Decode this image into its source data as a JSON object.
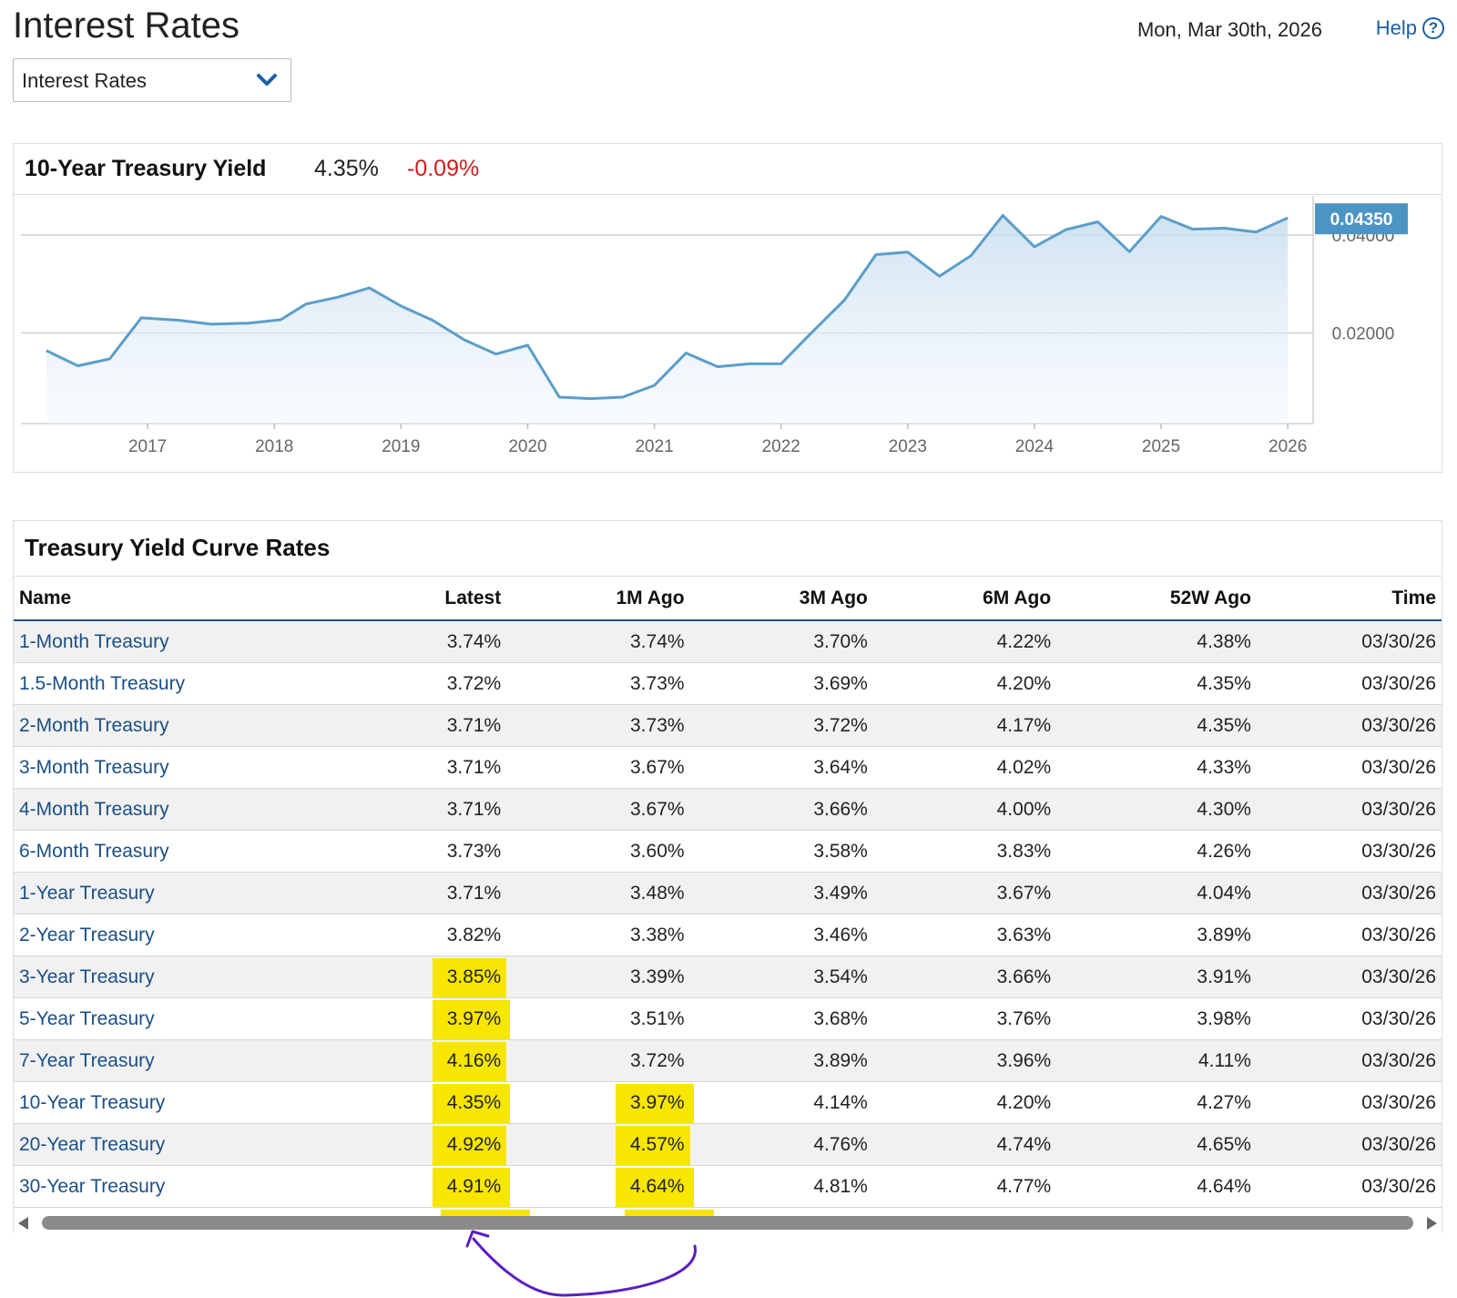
{
  "header": {
    "title": "Interest Rates",
    "date": "Mon, Mar 30th, 2026",
    "help_label": "Help"
  },
  "selector": {
    "value": "Interest Rates"
  },
  "chart_panel": {
    "title": "10-Year Treasury Yield",
    "value": "4.35%",
    "change": "-0.09%",
    "current_label": "0.04350"
  },
  "chart_data": {
    "type": "area",
    "x_tick_labels": [
      "2017",
      "2018",
      "2019",
      "2020",
      "2021",
      "2022",
      "2023",
      "2024",
      "2025",
      "2026"
    ],
    "y_tick_labels": [
      "0.02000",
      "0.04000"
    ],
    "y_ticks": [
      0.02,
      0.04
    ],
    "ylim": [
      0.0015,
      0.048
    ],
    "xlim": [
      2016.0,
      2026.2
    ],
    "x": [
      2016.2,
      2016.45,
      2016.7,
      2016.95,
      2017.25,
      2017.5,
      2017.8,
      2018.05,
      2018.25,
      2018.5,
      2018.75,
      2019.0,
      2019.25,
      2019.5,
      2019.75,
      2020.0,
      2020.25,
      2020.5,
      2020.75,
      2021.0,
      2021.25,
      2021.5,
      2021.75,
      2022.0,
      2022.25,
      2022.5,
      2022.75,
      2023.0,
      2023.25,
      2023.5,
      2023.75,
      2024.0,
      2024.25,
      2024.5,
      2024.75,
      2025.0,
      2025.25,
      2025.5,
      2025.75,
      2026.0
    ],
    "y": [
      0.0164,
      0.0133,
      0.0147,
      0.0231,
      0.0226,
      0.0218,
      0.022,
      0.0227,
      0.0259,
      0.0273,
      0.0292,
      0.0255,
      0.0226,
      0.0186,
      0.0157,
      0.0175,
      0.0069,
      0.0066,
      0.0069,
      0.0093,
      0.0159,
      0.0131,
      0.0137,
      0.0137,
      0.0203,
      0.0267,
      0.036,
      0.0365,
      0.0316,
      0.0358,
      0.044,
      0.0376,
      0.0411,
      0.0427,
      0.0366,
      0.0438,
      0.0412,
      0.0414,
      0.0406,
      0.0435
    ],
    "line_color": "#5b9ec9",
    "label_color": "#4b94c4",
    "grid": true
  },
  "table": {
    "title": "Treasury Yield Curve Rates",
    "columns": [
      "Name",
      "Latest",
      "1M Ago",
      "3M Ago",
      "6M Ago",
      "52W Ago",
      "Time"
    ],
    "rows": [
      [
        "1-Month Treasury",
        "3.74%",
        "3.74%",
        "3.70%",
        "4.22%",
        "4.38%",
        "03/30/26"
      ],
      [
        "1.5-Month Treasury",
        "3.72%",
        "3.73%",
        "3.69%",
        "4.20%",
        "4.35%",
        "03/30/26"
      ],
      [
        "2-Month Treasury",
        "3.71%",
        "3.73%",
        "3.72%",
        "4.17%",
        "4.35%",
        "03/30/26"
      ],
      [
        "3-Month Treasury",
        "3.71%",
        "3.67%",
        "3.64%",
        "4.02%",
        "4.33%",
        "03/30/26"
      ],
      [
        "4-Month Treasury",
        "3.71%",
        "3.67%",
        "3.66%",
        "4.00%",
        "4.30%",
        "03/30/26"
      ],
      [
        "6-Month Treasury",
        "3.73%",
        "3.60%",
        "3.58%",
        "3.83%",
        "4.26%",
        "03/30/26"
      ],
      [
        "1-Year Treasury",
        "3.71%",
        "3.48%",
        "3.49%",
        "3.67%",
        "4.04%",
        "03/30/26"
      ],
      [
        "2-Year Treasury",
        "3.82%",
        "3.38%",
        "3.46%",
        "3.63%",
        "3.89%",
        "03/30/26"
      ],
      [
        "3-Year Treasury",
        "3.85%",
        "3.39%",
        "3.54%",
        "3.66%",
        "3.91%",
        "03/30/26"
      ],
      [
        "5-Year Treasury",
        "3.97%",
        "3.51%",
        "3.68%",
        "3.76%",
        "3.98%",
        "03/30/26"
      ],
      [
        "7-Year Treasury",
        "4.16%",
        "3.72%",
        "3.89%",
        "3.96%",
        "4.11%",
        "03/30/26"
      ],
      [
        "10-Year Treasury",
        "4.35%",
        "3.97%",
        "4.14%",
        "4.20%",
        "4.27%",
        "03/30/26"
      ],
      [
        "20-Year Treasury",
        "4.92%",
        "4.57%",
        "4.76%",
        "4.74%",
        "4.65%",
        "03/30/26"
      ],
      [
        "30-Year Treasury",
        "4.91%",
        "4.64%",
        "4.81%",
        "4.77%",
        "4.64%",
        "03/30/26"
      ]
    ],
    "highlights": {
      "Latest": [
        "3-Year Treasury",
        "5-Year Treasury",
        "7-Year Treasury",
        "10-Year Treasury",
        "20-Year Treasury",
        "30-Year Treasury"
      ],
      "1M Ago": [
        "10-Year Treasury",
        "20-Year Treasury",
        "30-Year Treasury"
      ]
    },
    "highlight_color": "#f6e600",
    "annotation_color": "#5a1fc4"
  }
}
